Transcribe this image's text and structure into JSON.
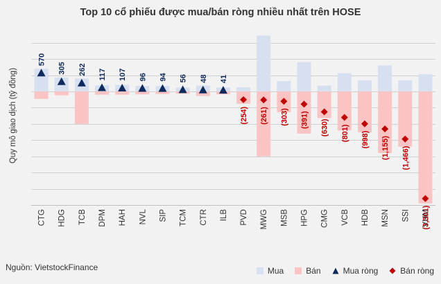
{
  "chart_data": {
    "type": "bar",
    "title": "Top 10 cổ phiếu được mua/bán ròng nhiều nhất trên HOSE",
    "ylabel": "Quy mô giao dịch (tỷ đồng)",
    "categories": [
      "CTG",
      "HDG",
      "TCB",
      "DPM",
      "HAH",
      "NVL",
      "SIP",
      "TCM",
      "CTR",
      "ILB",
      "PVD",
      "MWG",
      "MSB",
      "HPG",
      "CMG",
      "VCB",
      "HDB",
      "MSN",
      "SSI",
      "VHM"
    ],
    "ylim": [
      -3500,
      1800
    ],
    "grid": true,
    "legend_position": "bottom-right",
    "series": [
      {
        "name": "Mua",
        "type": "bar",
        "values": [
          700,
          430,
          400,
          190,
          200,
          170,
          170,
          120,
          180,
          120,
          130,
          1720,
          320,
          900,
          180,
          560,
          340,
          800,
          340,
          530
        ]
      },
      {
        "name": "Bán",
        "type": "bar",
        "values": [
          -230,
          -120,
          -1000,
          -100,
          -100,
          -90,
          -80,
          -70,
          -140,
          -90,
          -380,
          -2000,
          -640,
          -1300,
          -820,
          -1200,
          -1260,
          -1900,
          -1700,
          -3450
        ]
      },
      {
        "name": "Mua ròng",
        "type": "marker",
        "values": [
          570,
          305,
          262,
          117,
          107,
          96,
          94,
          56,
          48,
          41,
          null,
          null,
          null,
          null,
          null,
          null,
          null,
          null,
          null,
          null
        ]
      },
      {
        "name": "Bán ròng",
        "type": "marker",
        "values": [
          null,
          null,
          null,
          null,
          null,
          null,
          null,
          null,
          null,
          null,
          -254,
          -261,
          -303,
          -391,
          -630,
          -801,
          -998,
          -1155,
          -1466,
          -3301
        ]
      }
    ],
    "data_labels": [
      "570",
      "305",
      "262",
      "117",
      "107",
      "96",
      "94",
      "56",
      "48",
      "41",
      "(254)",
      "(261)",
      "(303)",
      "(391)",
      "(630)",
      "(801)",
      "(998)",
      "(1,155)",
      "(1,466)",
      "(3,301)"
    ],
    "colors": {
      "buy": "#d6e0f0",
      "sell": "#fbc4c4",
      "net_buy": "#0f2a5c",
      "net_sell": "#c00000",
      "grid": "#cfcfcf"
    }
  },
  "source": "Nguồn: VietstockFinance",
  "legend": [
    {
      "label": "Mua",
      "kind": "square",
      "color": "#d6e0f0"
    },
    {
      "label": "Bán",
      "kind": "square",
      "color": "#fbc4c4"
    },
    {
      "label": "Mua ròng",
      "kind": "triangle",
      "color": "#0f2a5c"
    },
    {
      "label": "Bán ròng",
      "kind": "diamond",
      "color": "#c00000"
    }
  ]
}
